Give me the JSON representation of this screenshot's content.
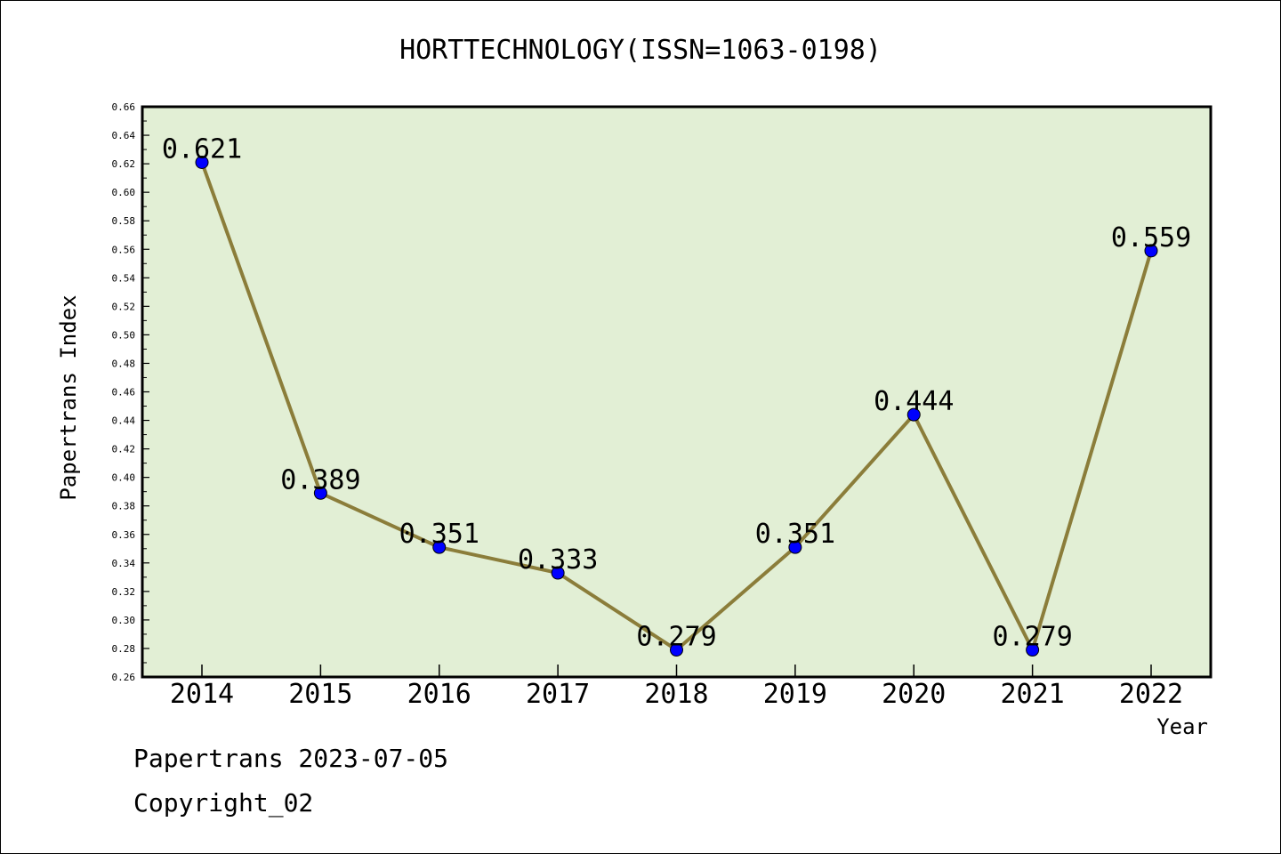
{
  "colors": {
    "plot_background": "#e2efd5",
    "line": "#8b7d3a",
    "marker": "#0000ff",
    "axis": "#000000",
    "text": "#000000"
  },
  "chart_data": {
    "type": "line",
    "title": "HORTTECHNOLOGY(ISSN=1063-0198)",
    "xlabel": "Year",
    "ylabel": "Papertrans Index",
    "categories": [
      "2014",
      "2015",
      "2016",
      "2017",
      "2018",
      "2019",
      "2020",
      "2021",
      "2022"
    ],
    "series": [
      {
        "values": [
          0.621,
          0.389,
          0.351,
          0.333,
          0.279,
          0.351,
          0.444,
          0.279,
          0.559
        ]
      }
    ],
    "data_labels": [
      "0.621",
      "0.389",
      "0.351",
      "0.333",
      "0.279",
      "0.351",
      "0.444",
      "0.279",
      "0.559"
    ],
    "ylim": [
      0.26,
      0.66
    ],
    "yticks": [
      "0.26",
      "0.28",
      "0.30",
      "0.32",
      "0.34",
      "0.36",
      "0.38",
      "0.40",
      "0.42",
      "0.44",
      "0.46",
      "0.48",
      "0.50",
      "0.52",
      "0.54",
      "0.56",
      "0.58",
      "0.60",
      "0.62",
      "0.64",
      "0.66"
    ],
    "grid": false,
    "legend": "none"
  },
  "footer": {
    "date_line": "Papertrans 2023-07-05",
    "copyright_line": "Copyright_02"
  }
}
